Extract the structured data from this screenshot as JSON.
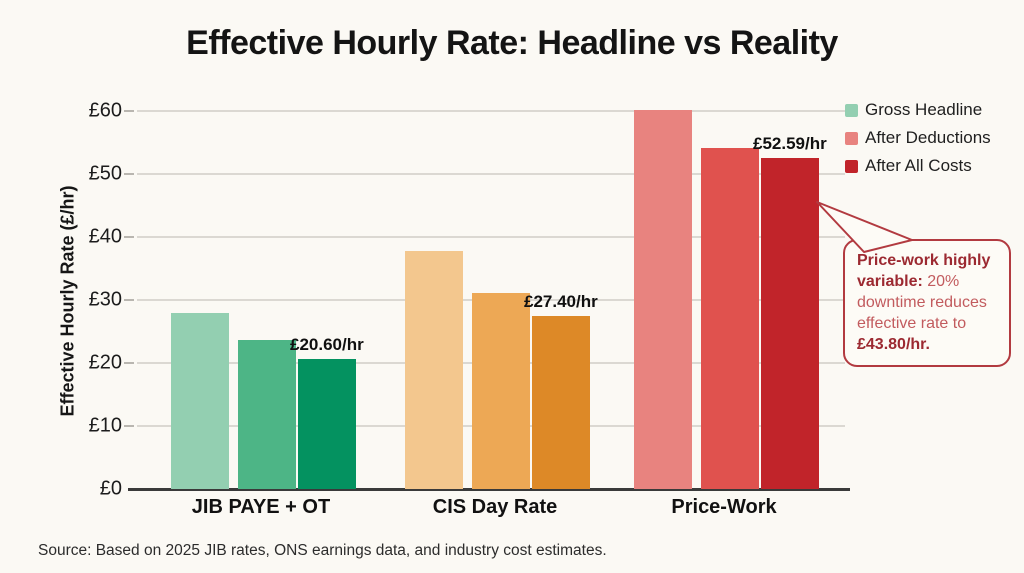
{
  "title": "Effective Hourly Rate: Headline vs Reality",
  "chart_data": {
    "type": "bar",
    "title": "Effective Hourly Rate: Headline vs Reality",
    "xlabel": "",
    "ylabel": "Effective Hourly Rate (£/hr)",
    "ylim": [
      0,
      60
    ],
    "grid": true,
    "ytick_labels": [
      "£0",
      "£10",
      "£20",
      "£30",
      "£40",
      "£50",
      "£60"
    ],
    "categories": [
      "JIB PAYE + OT",
      "CIS Day Rate",
      "Price-Work"
    ],
    "series": [
      {
        "name": "Gross Headline",
        "values": [
          28.0,
          37.7,
          60.2
        ]
      },
      {
        "name": "After Deductions",
        "values": [
          23.7,
          31.1,
          54.2
        ]
      },
      {
        "name": "After All Costs",
        "values": [
          20.6,
          27.4,
          52.59
        ]
      }
    ],
    "bar_value_labels": [
      "£20.60/hr",
      "£27.40/hr",
      "£52.59/hr"
    ],
    "bar_colors": [
      [
        "#93cfb1",
        "#4db586",
        "#049260"
      ],
      [
        "#f3c78e",
        "#eda855",
        "#dd8927"
      ],
      [
        "#e8837f",
        "#e0524e",
        "#c1242a"
      ]
    ],
    "legend": {
      "position": "top-right",
      "items": [
        {
          "label": "Gross Headline",
          "color": "#93cfb1"
        },
        {
          "label": "After Deductions",
          "color": "#e8837f"
        },
        {
          "label": "After All Costs",
          "color": "#c1242a"
        }
      ]
    }
  },
  "annotation": {
    "bold_lead": "Price-work highly variable:",
    "body_text": " 20% downtime reduces effective rate to ",
    "bold_value": "£43.80/hr.",
    "border_color": "#b23a40"
  },
  "colors": {
    "background": "#fbf9f4",
    "gridline": "#dbd8d2",
    "axis_line": "#3a3a3a",
    "annotation_bold": "#9c2931",
    "annotation_body": "#c25b5e"
  },
  "source": "Source: Based on 2025 JIB rates, ONS earnings data, and industry cost estimates."
}
